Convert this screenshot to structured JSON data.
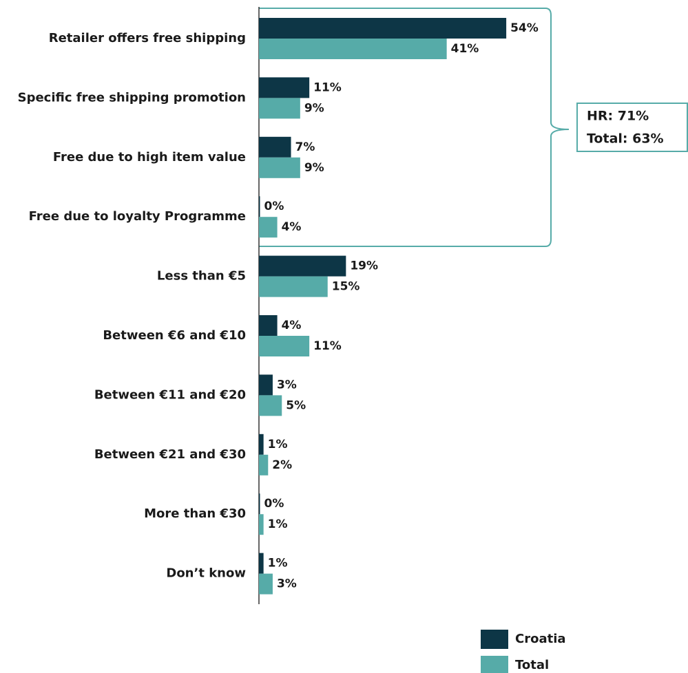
{
  "chart_data": {
    "type": "bar",
    "orientation": "horizontal",
    "categories": [
      "Retailer offers free shipping",
      "Specific free shipping promotion",
      "Free due to high item value",
      "Free due to loyalty Programme",
      "Less than €5",
      "Between €6 and €10",
      "Between €11 and €20",
      "Between €21 and €30",
      "More than €30",
      "Don’t know"
    ],
    "series": [
      {
        "name": "Croatia",
        "color": "#0d3646",
        "values": [
          54,
          11,
          7,
          0,
          19,
          4,
          3,
          1,
          0,
          1
        ],
        "value_labels": [
          "54%",
          "11%",
          "7%",
          "0%",
          "19%",
          "4%",
          "3%",
          "1%",
          "0%",
          "1%"
        ]
      },
      {
        "name": "Total",
        "color": "#56aba8",
        "values": [
          41,
          9,
          9,
          4,
          15,
          11,
          5,
          2,
          1,
          3
        ],
        "value_labels": [
          "41%",
          "9%",
          "9%",
          "4%",
          "15%",
          "11%",
          "5%",
          "2%",
          "1%",
          "3%"
        ]
      }
    ],
    "annotation": [
      "HR: 71%",
      "Total: 63%"
    ],
    "legend": "bottom-right"
  }
}
